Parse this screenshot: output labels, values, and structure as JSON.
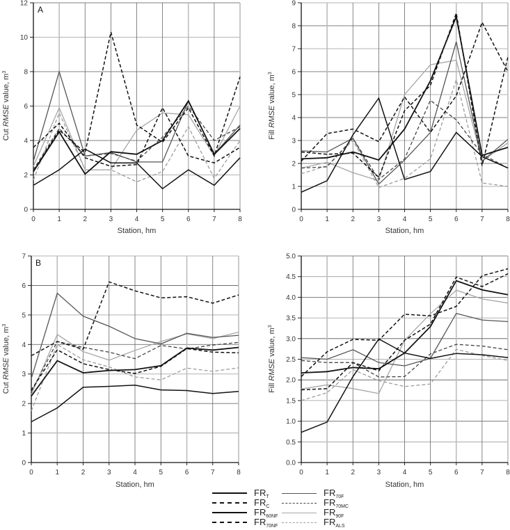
{
  "chart_data": [
    {
      "panel": "A",
      "type": "line",
      "title": "",
      "xlabel": "Station, hm",
      "ylabel": "Cut RMSE value, m³",
      "ylabel_parts": {
        "pre": "Cut ",
        "italic": "RMSE",
        "post": " value, m",
        "sup": "3"
      },
      "x": [
        0,
        1,
        2,
        3,
        4,
        5,
        6,
        7,
        8
      ],
      "xlim": [
        0,
        8
      ],
      "ylim": [
        0,
        12
      ],
      "yticks": [
        0,
        2,
        4,
        6,
        8,
        10,
        12
      ],
      "ytick_labels": [
        "0",
        "2",
        "4",
        "6",
        "8",
        "10",
        "12"
      ],
      "xtick_labels": [
        "0",
        "1",
        "2",
        "3",
        "4",
        "5",
        "6",
        "7",
        "8"
      ],
      "grid": true,
      "series": [
        {
          "key": "T",
          "values": [
            1.4,
            2.3,
            3.5,
            2.7,
            2.7,
            1.2,
            2.3,
            1.4,
            3.0
          ]
        },
        {
          "key": "C",
          "values": [
            3.6,
            5.0,
            3.0,
            2.5,
            2.6,
            5.9,
            3.1,
            2.7,
            3.6
          ]
        },
        {
          "key": "60NF",
          "values": [
            2.2,
            4.5,
            2.05,
            3.35,
            3.2,
            4.0,
            6.3,
            3.2,
            4.7
          ]
        },
        {
          "key": "70NF",
          "values": [
            2.2,
            4.6,
            3.3,
            10.3,
            4.9,
            3.9,
            5.9,
            3.1,
            7.7
          ]
        },
        {
          "key": "70F",
          "values": [
            2.8,
            8.0,
            3.1,
            3.3,
            2.75,
            2.75,
            6.3,
            3.2,
            4.9
          ]
        },
        {
          "key": "70MC",
          "values": [
            2.3,
            4.7,
            3.1,
            3.25,
            2.8,
            4.2,
            6.0,
            4.0,
            4.8
          ]
        },
        {
          "key": "90F",
          "values": [
            2.5,
            5.9,
            2.3,
            2.3,
            4.6,
            5.6,
            5.5,
            3.1,
            6.0
          ]
        },
        {
          "key": "ALS",
          "values": [
            1.7,
            5.6,
            2.3,
            2.3,
            1.6,
            2.2,
            4.8,
            1.8,
            4.0
          ]
        }
      ]
    },
    {
      "panel": "A-fill",
      "type": "line",
      "title": "",
      "xlabel": "Station, hm",
      "ylabel": "Fill RMSE value, m³",
      "ylabel_parts": {
        "pre": "Fill ",
        "italic": "RMSE",
        "post": " value, m",
        "sup": "3"
      },
      "x": [
        0,
        1,
        2,
        3,
        4,
        5,
        6,
        7,
        8
      ],
      "xlim": [
        0,
        8
      ],
      "ylim": [
        0,
        9
      ],
      "yticks": [
        0,
        1,
        2,
        3,
        4,
        5,
        6,
        7,
        8,
        9
      ],
      "ytick_labels": [
        "0",
        "1",
        "2",
        "3",
        "4",
        "5",
        "6",
        "7",
        "8",
        "9"
      ],
      "xtick_labels": [
        "0",
        "1",
        "2",
        "3",
        "4",
        "5",
        "6",
        "7",
        "8"
      ],
      "grid": true,
      "series": [
        {
          "key": "T",
          "values": [
            0.75,
            1.25,
            3.25,
            4.85,
            1.3,
            1.65,
            3.35,
            2.3,
            1.8
          ]
        },
        {
          "key": "C",
          "values": [
            2.5,
            2.4,
            2.45,
            1.4,
            4.3,
            5.4,
            8.55,
            1.9,
            6.65
          ]
        },
        {
          "key": "60NF",
          "values": [
            2.2,
            2.25,
            2.5,
            2.15,
            3.5,
            5.6,
            8.4,
            2.35,
            2.7
          ]
        },
        {
          "key": "70NF",
          "values": [
            2.1,
            3.3,
            3.5,
            2.95,
            4.9,
            3.35,
            4.95,
            8.15,
            6.0
          ]
        },
        {
          "key": "70F",
          "values": [
            2.55,
            2.5,
            3.1,
            1.1,
            2.15,
            3.35,
            7.3,
            2.1,
            3.05
          ]
        },
        {
          "key": "70MC",
          "values": [
            1.8,
            1.85,
            3.1,
            1.3,
            2.2,
            4.75,
            3.9,
            2.4,
            1.8
          ]
        },
        {
          "key": "90F",
          "values": [
            1.8,
            2.05,
            1.6,
            1.25,
            5.0,
            6.3,
            6.5,
            2.1,
            2.9
          ]
        },
        {
          "key": "ALS",
          "values": [
            1.55,
            1.9,
            3.0,
            0.95,
            1.35,
            2.2,
            5.65,
            1.15,
            1.0
          ]
        }
      ]
    },
    {
      "panel": "B",
      "type": "line",
      "title": "",
      "xlabel": "Station, hm",
      "ylabel": "Cut RMSE value, m³",
      "ylabel_parts": {
        "pre": "Cut ",
        "italic": "RMSE",
        "post": " value, m",
        "sup": "3"
      },
      "x": [
        0,
        1,
        2,
        3,
        4,
        5,
        6,
        7,
        8
      ],
      "xlim": [
        0,
        8
      ],
      "ylim": [
        0,
        7
      ],
      "yticks": [
        0,
        1,
        2,
        3,
        4,
        5,
        6,
        7
      ],
      "ytick_labels": [
        "0",
        "1",
        "2",
        "3",
        "4",
        "5",
        "6",
        "7"
      ],
      "xtick_labels": [
        "0",
        "1",
        "2",
        "3",
        "4",
        "5",
        "6",
        "7",
        "8"
      ],
      "grid": true,
      "series": [
        {
          "key": "T",
          "values": [
            1.38,
            1.85,
            2.55,
            2.58,
            2.62,
            2.46,
            2.44,
            2.34,
            2.41
          ]
        },
        {
          "key": "C",
          "values": [
            2.45,
            3.82,
            3.35,
            3.15,
            3.02,
            3.26,
            3.86,
            3.74,
            3.72
          ]
        },
        {
          "key": "60NF",
          "values": [
            2.25,
            3.45,
            3.04,
            3.12,
            3.15,
            3.28,
            3.88,
            3.81,
            3.9
          ]
        },
        {
          "key": "70NF",
          "values": [
            3.62,
            4.1,
            3.84,
            6.12,
            5.82,
            5.58,
            5.62,
            5.4,
            5.68
          ]
        },
        {
          "key": "70F",
          "values": [
            2.85,
            5.74,
            4.96,
            4.62,
            4.2,
            4.02,
            4.38,
            4.24,
            4.31
          ]
        },
        {
          "key": "70MC",
          "values": [
            2.4,
            4.1,
            3.9,
            3.74,
            3.52,
            3.97,
            3.85,
            3.98,
            4.07
          ]
        },
        {
          "key": "90F",
          "values": [
            2.3,
            4.34,
            3.76,
            3.47,
            3.8,
            4.1,
            4.36,
            4.2,
            4.42
          ]
        },
        {
          "key": "ALS",
          "values": [
            1.75,
            4.0,
            3.48,
            3.24,
            2.9,
            2.8,
            3.2,
            3.09,
            3.21
          ]
        }
      ]
    },
    {
      "panel": "B-fill",
      "type": "line",
      "title": "",
      "xlabel": "Station, hm",
      "ylabel": "Fill RMSE value, m³",
      "ylabel_parts": {
        "pre": "Fill ",
        "italic": "RMSE",
        "post": " value, m",
        "sup": "3"
      },
      "x": [
        0,
        1,
        2,
        3,
        4,
        5,
        6,
        7,
        8
      ],
      "xlim": [
        0,
        8
      ],
      "ylim": [
        0,
        5
      ],
      "yticks": [
        0,
        0.5,
        1,
        1.5,
        2,
        2.5,
        3,
        3.5,
        4,
        4.5,
        5
      ],
      "ytick_labels": [
        "0.0",
        "0.5",
        "1.0",
        "1.5",
        "2.0",
        "2.5",
        "3.0",
        "3.5",
        "4.0",
        "4.5",
        "5.0"
      ],
      "xtick_labels": [
        "0",
        "1",
        "2",
        "3",
        "4",
        "5",
        "6",
        "7",
        "8"
      ],
      "grid": true,
      "series": [
        {
          "key": "T",
          "values": [
            0.73,
            0.98,
            2.08,
            2.99,
            2.65,
            2.52,
            2.64,
            2.61,
            2.54
          ]
        },
        {
          "key": "C",
          "values": [
            2.08,
            2.68,
            2.98,
            2.96,
            3.59,
            3.55,
            3.78,
            4.52,
            4.69
          ]
        },
        {
          "key": "60NF",
          "values": [
            2.17,
            2.2,
            2.3,
            2.27,
            2.65,
            3.29,
            4.4,
            4.18,
            4.06
          ]
        },
        {
          "key": "70NF",
          "values": [
            1.76,
            1.79,
            2.42,
            2.22,
            2.96,
            3.35,
            4.49,
            4.26,
            4.57
          ]
        },
        {
          "key": "70F",
          "values": [
            2.54,
            2.5,
            2.73,
            2.42,
            2.34,
            2.52,
            3.61,
            3.45,
            3.41
          ]
        },
        {
          "key": "70MC",
          "values": [
            2.47,
            2.42,
            2.42,
            2.07,
            2.08,
            2.63,
            2.86,
            2.82,
            2.73
          ]
        },
        {
          "key": "90F",
          "values": [
            1.78,
            1.88,
            1.79,
            1.67,
            2.96,
            3.6,
            4.17,
            3.96,
            3.86
          ]
        },
        {
          "key": "ALS",
          "values": [
            1.5,
            1.69,
            2.25,
            1.98,
            1.84,
            1.9,
            2.74,
            2.59,
            2.47
          ]
        }
      ]
    }
  ],
  "legend": [
    {
      "key": "T",
      "label": "FR",
      "sub": "T",
      "color": "#111111",
      "dashed": false
    },
    {
      "key": "C",
      "label": "FR",
      "sub": "C",
      "color": "#111111",
      "dashed": true
    },
    {
      "key": "60NF",
      "label": "FR",
      "sub": "60NF",
      "color": "#111111",
      "dashed": false
    },
    {
      "key": "70NF",
      "label": "FR",
      "sub": "70NF",
      "color": "#111111",
      "dashed": true
    },
    {
      "key": "70F",
      "label": "FR",
      "sub": "70F",
      "color": "#555555",
      "dashed": false
    },
    {
      "key": "70MC",
      "label": "FR",
      "sub": "70MC",
      "color": "#444444",
      "dashed": true
    },
    {
      "key": "90F",
      "label": "FR",
      "sub": "90F",
      "color": "#a6a6a6",
      "dashed": false
    },
    {
      "key": "ALS",
      "label": "FR",
      "sub": "ALS",
      "color": "#9d9d9d",
      "dashed": true
    }
  ],
  "panel_letters": {
    "top_left": "A",
    "bottom_left": "B"
  }
}
